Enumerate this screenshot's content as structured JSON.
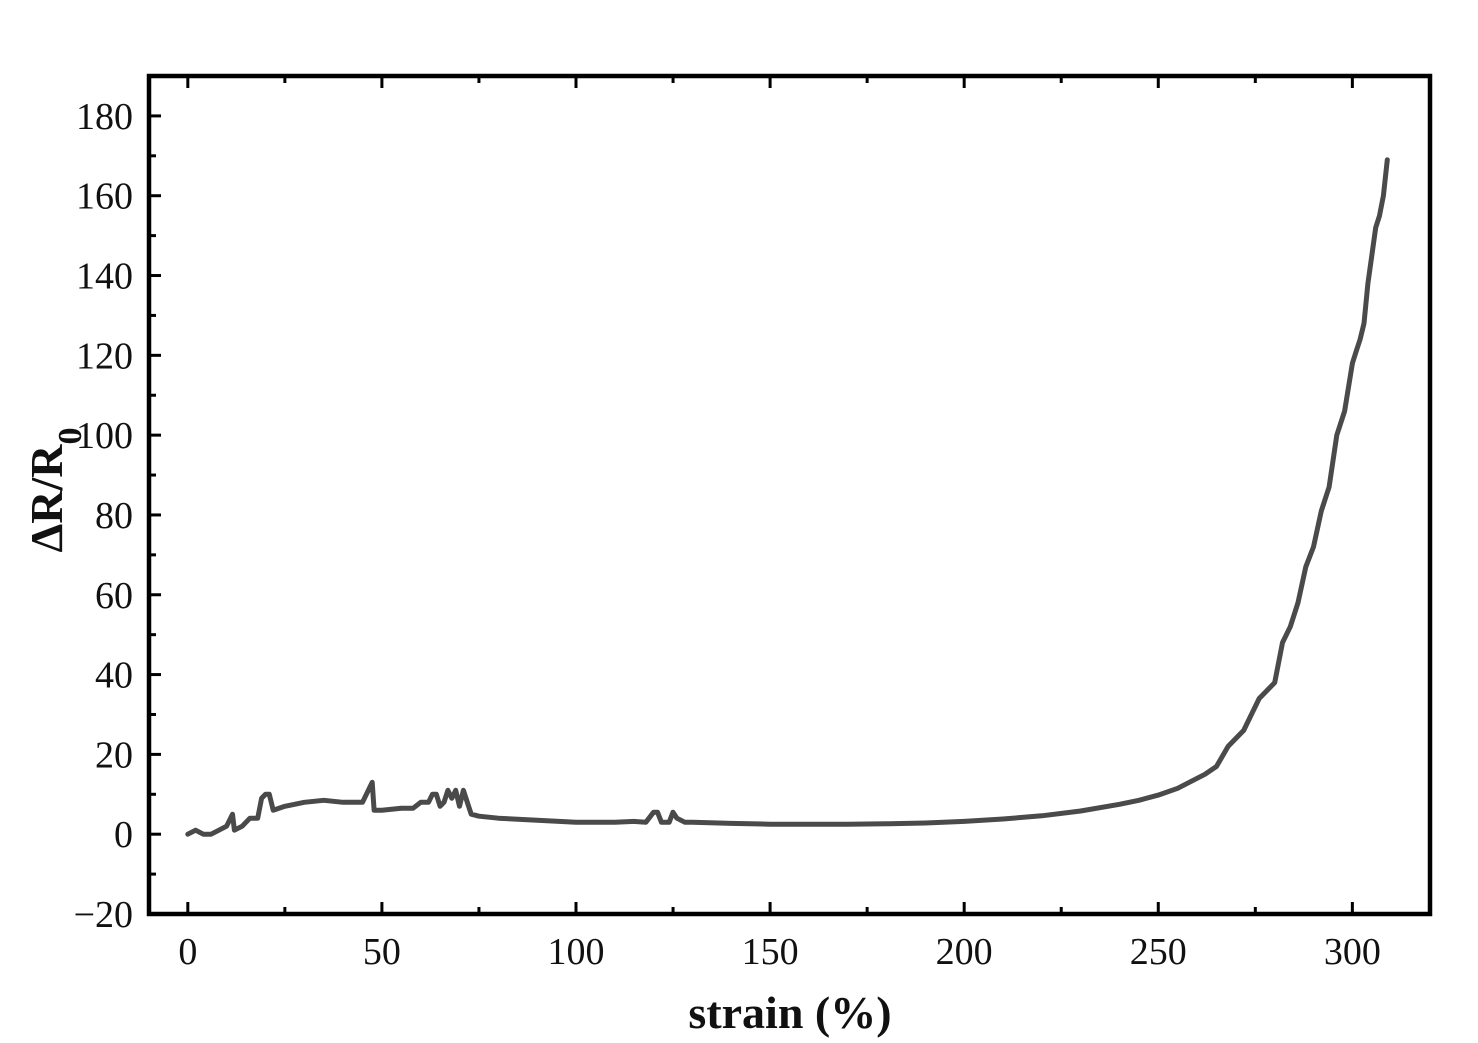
{
  "chart_data": {
    "type": "line",
    "title": "",
    "xlabel": "strain (%)",
    "ylabel": {
      "main": "ΔR/R",
      "subscript": "0"
    },
    "xlim": [
      -10,
      320
    ],
    "ylim": [
      -20,
      190
    ],
    "xticks": [
      0,
      50,
      100,
      150,
      200,
      250,
      300
    ],
    "xtick_labels": [
      "0",
      "50",
      "100",
      "150",
      "200",
      "250",
      "300"
    ],
    "yticks": [
      -20,
      0,
      20,
      40,
      60,
      80,
      100,
      120,
      140,
      160,
      180
    ],
    "ytick_labels": [
      "−20",
      "0",
      "20",
      "40",
      "60",
      "80",
      "100",
      "120",
      "140",
      "160",
      "180"
    ],
    "grid": false,
    "line_color": "#4a4a4a",
    "series": [
      {
        "x": [
          0,
          2,
          4,
          6,
          8,
          10,
          11.5,
          12,
          14,
          16,
          18,
          19,
          20,
          21,
          22,
          25,
          30,
          35,
          40,
          45,
          47.5,
          48,
          50,
          55,
          58,
          60,
          62,
          63,
          64,
          65,
          66,
          67,
          68,
          69,
          70,
          71,
          72,
          73,
          75,
          80,
          90,
          100,
          110,
          115,
          118,
          120,
          121,
          122,
          123,
          124,
          125,
          126,
          128,
          130,
          140,
          150,
          160,
          170,
          180,
          190,
          200,
          210,
          220,
          230,
          240,
          245,
          250,
          255,
          260,
          262,
          265,
          268,
          270,
          272,
          274,
          276,
          278,
          280,
          282,
          284,
          286,
          288,
          290,
          292,
          294,
          296,
          298,
          300,
          301,
          302,
          303,
          304,
          305,
          306,
          307,
          308,
          309
        ],
        "y": [
          0,
          1,
          0,
          0,
          1,
          2,
          5,
          1,
          2,
          4,
          4,
          9,
          10,
          10,
          6,
          7,
          8,
          8.5,
          8,
          8,
          13,
          6,
          6,
          6.5,
          6.5,
          8,
          8,
          10,
          10,
          7,
          8,
          11,
          9,
          11,
          7,
          11,
          8,
          5,
          4.5,
          4,
          3.5,
          3,
          3,
          3.2,
          3,
          5.5,
          5.5,
          3,
          3,
          3,
          5.5,
          4,
          3,
          3,
          2.7,
          2.5,
          2.5,
          2.5,
          2.6,
          2.8,
          3.2,
          3.8,
          4.6,
          5.8,
          7.5,
          8.5,
          9.8,
          11.5,
          14,
          15,
          17,
          22,
          24,
          26,
          30,
          34,
          36,
          38,
          48,
          52,
          58,
          67,
          72,
          81,
          87,
          100,
          106,
          118,
          121,
          124,
          128,
          138,
          145,
          152,
          155,
          160,
          169
        ]
      }
    ]
  }
}
